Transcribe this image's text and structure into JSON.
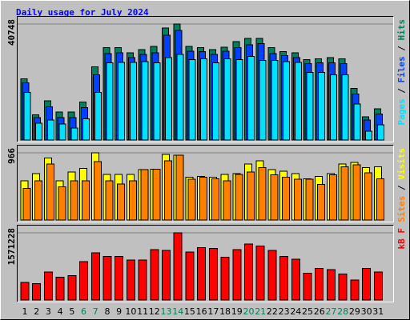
{
  "title": "Daily usage for July 2024",
  "legend_separator": "/",
  "chart_data": [
    {
      "type": "bar",
      "ylim": [
        0,
        40748
      ],
      "yticks": [
        40748
      ],
      "series": [
        {
          "name": "Hits",
          "color": "#00805c",
          "values": [
            21500,
            8900,
            13700,
            9800,
            9800,
            13400,
            25700,
            32400,
            32400,
            30700,
            31800,
            32900,
            39300,
            40748,
            32900,
            32400,
            31800,
            32600,
            34600,
            35700,
            35700,
            32400,
            31000,
            30700,
            28200,
            28500,
            29000,
            28500,
            18100,
            8100,
            10900
          ]
        },
        {
          "name": "Files",
          "color": "#0040ff",
          "values": [
            20100,
            7800,
            11700,
            7800,
            7800,
            11400,
            22900,
            30400,
            30700,
            29000,
            30100,
            30700,
            36800,
            38500,
            31200,
            31000,
            30100,
            31200,
            32400,
            33500,
            33800,
            30400,
            29600,
            29000,
            26800,
            27100,
            27100,
            26800,
            16200,
            7000,
            9200
          ]
        },
        {
          "name": "Pages",
          "color": "#00e0ff",
          "values": [
            16700,
            5900,
            7000,
            5600,
            4200,
            7500,
            16700,
            27100,
            27300,
            27300,
            27600,
            27100,
            29000,
            30100,
            28200,
            28500,
            27100,
            28500,
            28200,
            29300,
            27900,
            27900,
            27600,
            27300,
            23700,
            23700,
            22900,
            22900,
            12600,
            3100,
            5300
          ]
        }
      ]
    },
    {
      "type": "bar",
      "ylim": [
        0,
        966
      ],
      "yticks": [
        966
      ],
      "series": [
        {
          "name": "Visits",
          "color": "#ffff00",
          "values": [
            562,
            668,
            891,
            562,
            690,
            743,
            966,
            658,
            658,
            658,
            722,
            732,
            945,
            934,
            616,
            626,
            616,
            658,
            668,
            807,
            849,
            722,
            700,
            668,
            594,
            626,
            668,
            807,
            828,
            754,
            764
          ]
        },
        {
          "name": "Sites",
          "color": "#ff8000",
          "values": [
            456,
            562,
            807,
            478,
            562,
            562,
            838,
            562,
            520,
            562,
            722,
            732,
            849,
            934,
            584,
            616,
            594,
            562,
            658,
            690,
            754,
            647,
            616,
            584,
            584,
            510,
            647,
            764,
            796,
            679,
            594
          ]
        }
      ]
    },
    {
      "type": "bar",
      "ylim": [
        0,
        1571228
      ],
      "yticks": [
        1571228
      ],
      "series": [
        {
          "name": "kB F",
          "color": "#ff0000",
          "values": [
            414000,
            380000,
            656000,
            535000,
            570000,
            898000,
            1105000,
            1019000,
            1019000,
            932000,
            932000,
            1174000,
            1157000,
            1571228,
            1122000,
            1226000,
            1209000,
            1001000,
            1174000,
            1312000,
            1260000,
            1157000,
            1019000,
            950000,
            622000,
            742000,
            708000,
            604000,
            466000,
            742000,
            656000
          ]
        }
      ],
      "categories": [
        "1",
        "2",
        "3",
        "4",
        "5",
        "6",
        "7",
        "8",
        "9",
        "10",
        "11",
        "12",
        "13",
        "14",
        "15",
        "16",
        "17",
        "18",
        "19",
        "20",
        "21",
        "22",
        "23",
        "24",
        "25",
        "26",
        "27",
        "28",
        "29",
        "30",
        "31"
      ],
      "category_colors": [
        "#000000",
        "#000000",
        "#000000",
        "#000000",
        "#000000",
        "#00805c",
        "#00805c",
        "#000000",
        "#000000",
        "#000000",
        "#000000",
        "#000000",
        "#00805c",
        "#00805c",
        "#000000",
        "#000000",
        "#000000",
        "#000000",
        "#000000",
        "#00805c",
        "#00805c",
        "#000000",
        "#000000",
        "#000000",
        "#000000",
        "#000000",
        "#00805c",
        "#00805c",
        "#000000",
        "#000000",
        "#000000"
      ]
    }
  ]
}
